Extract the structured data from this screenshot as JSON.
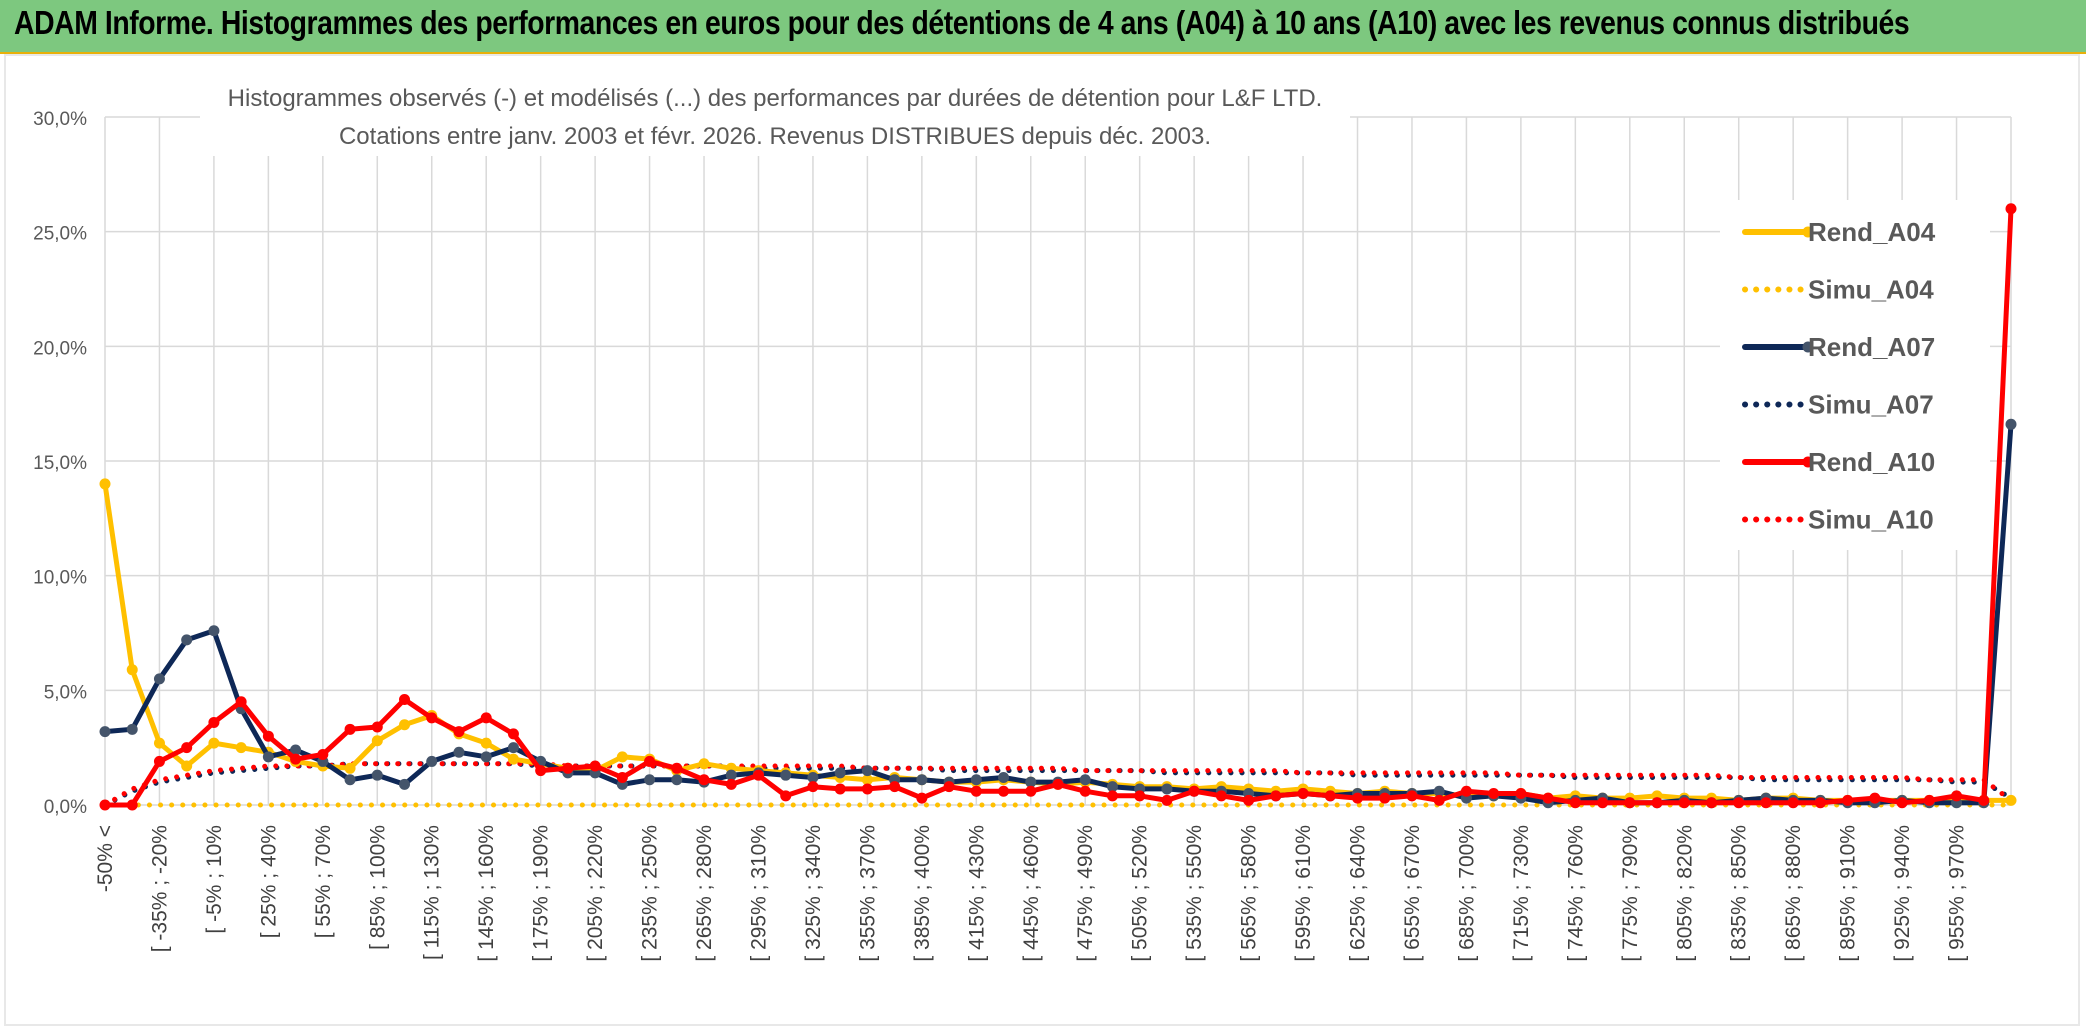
{
  "banner": {
    "title": "ADAM Informe. Histogrammes des performances en euros pour des détentions de 4 ans (A04) à 10 ans (A10) avec les revenus connus distribués"
  },
  "colors": {
    "banner_bg": "#7dc87f",
    "rend_a04": "#ffc000",
    "rend_a07": "#0e2857",
    "rend_a10": "#ff0000",
    "grid": "#d9d9d9",
    "text": "#595959"
  },
  "chart_data": {
    "type": "line",
    "title_line1": "Histogrammes observés (-) et modélisés (...) des performances par durées de détention pour L&F LTD.",
    "title_line2": "Cotations entre janv. 2003 et févr. 2026. Revenus DISTRIBUES depuis déc. 2003.",
    "ylim": [
      0,
      30
    ],
    "yticks": [
      "0,0%",
      "5,0%",
      "10,0%",
      "15,0%",
      "20,0%",
      "25,0%",
      "30,0%"
    ],
    "xtick_labels": [
      "-50% <",
      "[ -35% ; -20%",
      "[ -5% ; 10%",
      "[ 25% ; 40%",
      "[ 55% ; 70%",
      "[ 85% ; 100%",
      "[ 115% ; 130%",
      "[ 145% ; 160%",
      "[ 175% ; 190%",
      "[ 205% ; 220%",
      "[ 235% ; 250%",
      "[ 265% ; 280%",
      "[ 295% ; 310%",
      "[ 325% ; 340%",
      "[ 355% ; 370%",
      "[ 385% ; 400%",
      "[ 415% ; 430%",
      "[ 445% ; 460%",
      "[ 475% ; 490%",
      "[ 505% ; 520%",
      "[ 535% ; 550%",
      "[ 565% ; 580%",
      "[ 595% ; 610%",
      "[ 625% ; 640%",
      "[ 655% ; 670%",
      "[ 685% ; 700%",
      "[ 715% ; 730%",
      "[ 745% ; 760%",
      "[ 775% ; 790%",
      "[ 805% ; 820%",
      "[ 835% ; 850%",
      "[ 865% ; 880%",
      "[ 895% ; 910%",
      "[ 925% ; 940%",
      "[ 955% ; 970%"
    ],
    "n_categories": 71,
    "series": [
      {
        "name": "Rend_A04",
        "style": "solid",
        "color": "#ffc000",
        "values": [
          14.0,
          5.9,
          2.7,
          1.7,
          2.7,
          2.5,
          2.3,
          1.9,
          1.7,
          1.6,
          2.8,
          3.5,
          3.9,
          3.1,
          2.7,
          2.0,
          1.8,
          1.6,
          1.5,
          2.1,
          2.0,
          1.5,
          1.8,
          1.6,
          1.5,
          1.4,
          1.3,
          1.2,
          1.1,
          1.2,
          1.1,
          1.0,
          1.0,
          1.1,
          1.0,
          0.9,
          1.0,
          0.9,
          0.8,
          0.8,
          0.7,
          0.8,
          0.7,
          0.6,
          0.7,
          0.6,
          0.5,
          0.6,
          0.5,
          0.5,
          0.4,
          0.4,
          0.5,
          0.3,
          0.4,
          0.3,
          0.3,
          0.4,
          0.3,
          0.3,
          0.2,
          0.3,
          0.3,
          0.2,
          0.2,
          0.2,
          0.2,
          0.2,
          0.2,
          0.2,
          0.2
        ]
      },
      {
        "name": "Simu_A04",
        "style": "dotted",
        "color": "#ffc000",
        "values": [
          0.0,
          0.0,
          0.0,
          0.0,
          0.0,
          0.0,
          0.0,
          0.0,
          0.0,
          0.0,
          0.0,
          0.0,
          0.0,
          0.0,
          0.0,
          0.0,
          0.0,
          0.0,
          0.0,
          0.0,
          0.0,
          0.0,
          0.0,
          0.0,
          0.0,
          0.0,
          0.0,
          0.0,
          0.0,
          0.0,
          0.0,
          0.0,
          0.0,
          0.0,
          0.0,
          0.0,
          0.0,
          0.0,
          0.0,
          0.0,
          0.0,
          0.0,
          0.0,
          0.0,
          0.0,
          0.0,
          0.0,
          0.0,
          0.0,
          0.0,
          0.0,
          0.0,
          0.0,
          0.0,
          0.0,
          0.0,
          0.0,
          0.0,
          0.0,
          0.0,
          0.0,
          0.0,
          0.0,
          0.0,
          0.0,
          0.0,
          0.0,
          0.0,
          0.0,
          0.0,
          0.0
        ]
      },
      {
        "name": "Rend_A07",
        "style": "solid",
        "color": "#0e2857",
        "values": [
          3.2,
          3.3,
          5.5,
          7.2,
          7.6,
          4.2,
          2.1,
          2.4,
          1.9,
          1.1,
          1.3,
          0.9,
          1.9,
          2.3,
          2.1,
          2.5,
          1.9,
          1.4,
          1.4,
          0.9,
          1.1,
          1.1,
          1.0,
          1.3,
          1.4,
          1.3,
          1.2,
          1.4,
          1.5,
          1.1,
          1.1,
          1.0,
          1.1,
          1.2,
          1.0,
          1.0,
          1.1,
          0.8,
          0.7,
          0.7,
          0.6,
          0.6,
          0.5,
          0.4,
          0.5,
          0.4,
          0.5,
          0.5,
          0.5,
          0.6,
          0.3,
          0.4,
          0.3,
          0.1,
          0.2,
          0.3,
          0.1,
          0.1,
          0.2,
          0.1,
          0.2,
          0.3,
          0.2,
          0.2,
          0.1,
          0.1,
          0.2,
          0.1,
          0.1,
          0.1,
          16.6
        ]
      },
      {
        "name": "Simu_A07",
        "style": "dotted",
        "color": "#0e2857",
        "values": [
          0.0,
          0.6,
          1.0,
          1.2,
          1.4,
          1.5,
          1.6,
          1.7,
          1.7,
          1.8,
          1.8,
          1.8,
          1.8,
          1.8,
          1.8,
          1.8,
          1.7,
          1.7,
          1.7,
          1.7,
          1.7,
          1.7,
          1.7,
          1.7,
          1.6,
          1.6,
          1.6,
          1.6,
          1.6,
          1.6,
          1.6,
          1.5,
          1.5,
          1.5,
          1.5,
          1.5,
          1.5,
          1.5,
          1.5,
          1.4,
          1.4,
          1.4,
          1.4,
          1.4,
          1.4,
          1.4,
          1.3,
          1.3,
          1.3,
          1.3,
          1.3,
          1.3,
          1.3,
          1.3,
          1.2,
          1.2,
          1.2,
          1.2,
          1.2,
          1.2,
          1.2,
          1.1,
          1.1,
          1.1,
          1.1,
          1.1,
          1.1,
          1.1,
          1.0,
          1.0,
          0.3
        ]
      },
      {
        "name": "Rend_A10",
        "style": "solid",
        "color": "#ff0000",
        "values": [
          0.0,
          0.0,
          1.9,
          2.5,
          3.6,
          4.5,
          3.0,
          2.0,
          2.2,
          3.3,
          3.4,
          4.6,
          3.8,
          3.2,
          3.8,
          3.1,
          1.5,
          1.6,
          1.7,
          1.2,
          1.9,
          1.6,
          1.1,
          0.9,
          1.3,
          0.4,
          0.8,
          0.7,
          0.7,
          0.8,
          0.3,
          0.8,
          0.6,
          0.6,
          0.6,
          0.9,
          0.6,
          0.4,
          0.4,
          0.2,
          0.6,
          0.4,
          0.2,
          0.4,
          0.5,
          0.4,
          0.3,
          0.3,
          0.4,
          0.2,
          0.6,
          0.5,
          0.5,
          0.3,
          0.1,
          0.1,
          0.1,
          0.1,
          0.1,
          0.1,
          0.1,
          0.1,
          0.1,
          0.1,
          0.2,
          0.3,
          0.1,
          0.2,
          0.4,
          0.2,
          26.0
        ]
      },
      {
        "name": "Simu_A10",
        "style": "dotted",
        "color": "#ff0000",
        "values": [
          0.0,
          0.7,
          1.1,
          1.3,
          1.5,
          1.6,
          1.7,
          1.7,
          1.7,
          1.8,
          1.8,
          1.8,
          1.8,
          1.8,
          1.8,
          1.8,
          1.8,
          1.7,
          1.7,
          1.7,
          1.7,
          1.7,
          1.7,
          1.7,
          1.7,
          1.7,
          1.7,
          1.7,
          1.6,
          1.6,
          1.6,
          1.6,
          1.6,
          1.6,
          1.6,
          1.6,
          1.5,
          1.5,
          1.5,
          1.5,
          1.5,
          1.5,
          1.5,
          1.5,
          1.4,
          1.4,
          1.4,
          1.4,
          1.4,
          1.4,
          1.4,
          1.4,
          1.3,
          1.3,
          1.3,
          1.3,
          1.3,
          1.3,
          1.3,
          1.3,
          1.2,
          1.2,
          1.2,
          1.2,
          1.2,
          1.2,
          1.2,
          1.1,
          1.1,
          1.1,
          0.2
        ]
      }
    ],
    "legend": [
      "Rend_A04",
      "Simu_A04",
      "Rend_A07",
      "Simu_A07",
      "Rend_A10",
      "Simu_A10"
    ],
    "legend_position": "right"
  }
}
